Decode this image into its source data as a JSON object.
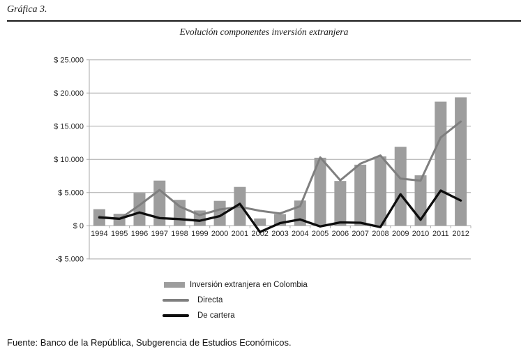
{
  "page": {
    "figure_label": "Gráfica 3.",
    "source": "Fuente: Banco de la República, Subgerencia de Estudios Económicos."
  },
  "colors": {
    "bar_fill": "#9d9d9d",
    "line_directa": "#7f7f7f",
    "line_cartera": "#0d0d0d",
    "gridline": "#a8a8a8",
    "axis_text": "#262626"
  },
  "chart_data": {
    "type": "bar",
    "title": "Evolución componentes inversión extranjera",
    "xlabel": "",
    "ylabel": "",
    "ylim": [
      -5000,
      25000
    ],
    "grid": true,
    "legend_position": "bottom",
    "y_ticks": [
      "$ 25.000",
      "$ 20.000",
      "$ 15.000",
      "$ 10.000",
      "$ 5.000",
      "$ 0",
      "-$ 5.000"
    ],
    "y_tick_values": [
      25000,
      20000,
      15000,
      10000,
      5000,
      0,
      -5000
    ],
    "categories": [
      "1994",
      "1995",
      "1996",
      "1997",
      "1998",
      "1999",
      "2000",
      "2001",
      "2002",
      "2003",
      "2004",
      "2005",
      "2006",
      "2007",
      "2008",
      "2009",
      "2010",
      "2011",
      "2012"
    ],
    "series": [
      {
        "name": "Inversión extranjera en Colombia",
        "type": "bar",
        "color": "#9d9d9d",
        "values": [
          2500,
          1800,
          4950,
          6800,
          3900,
          2300,
          3750,
          5850,
          1100,
          1750,
          3800,
          10250,
          6750,
          9200,
          10450,
          11900,
          7600,
          18700,
          19350
        ]
      },
      {
        "name": "Directa",
        "type": "line",
        "color": "#7f7f7f",
        "values": [
          1400,
          1000,
          3100,
          5400,
          2900,
          1600,
          2450,
          2850,
          2250,
          1850,
          2950,
          10300,
          6850,
          9350,
          10600,
          7100,
          6800,
          13300,
          15700
        ]
      },
      {
        "name": "De cartera",
        "type": "line",
        "color": "#0d0d0d",
        "values": [
          1250,
          1050,
          2000,
          1150,
          1000,
          750,
          1450,
          3300,
          -950,
          400,
          950,
          -100,
          500,
          450,
          -200,
          4750,
          900,
          5300,
          3800
        ]
      }
    ]
  }
}
